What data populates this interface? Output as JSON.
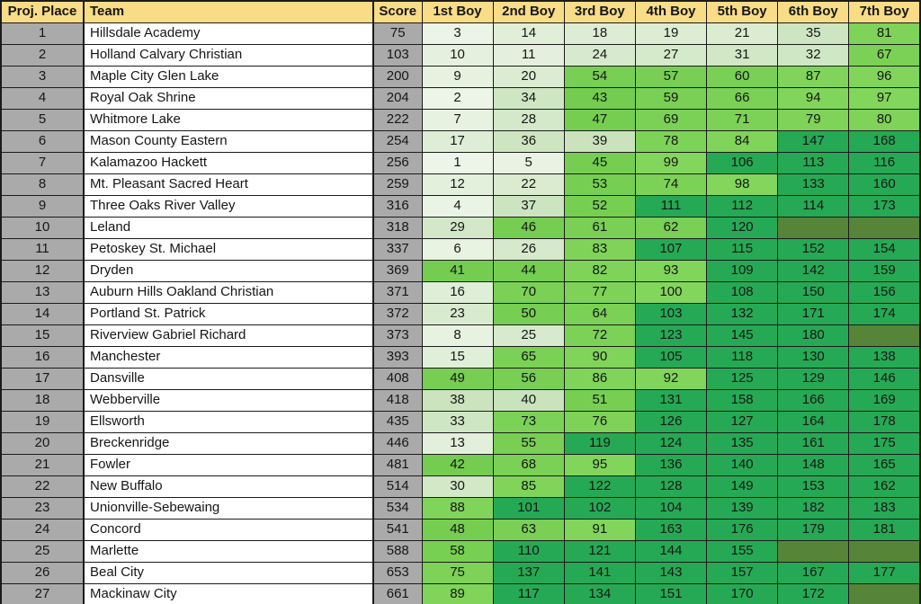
{
  "table": {
    "headers": [
      "Proj. Place",
      "Team",
      "Score",
      "1st Boy",
      "2nd Boy",
      "3rd Boy",
      "4th Boy",
      "5th Boy",
      "6th Boy",
      "7th Boy"
    ],
    "rows": [
      {
        "place": "1",
        "team": "Hillsdale Academy",
        "score": "75",
        "boys": [
          3,
          14,
          18,
          19,
          21,
          35,
          81
        ]
      },
      {
        "place": "2",
        "team": "Holland Calvary Christian",
        "score": "103",
        "boys": [
          10,
          11,
          24,
          27,
          31,
          32,
          67
        ]
      },
      {
        "place": "3",
        "team": "Maple City Glen Lake",
        "score": "200",
        "boys": [
          9,
          20,
          54,
          57,
          60,
          87,
          96
        ]
      },
      {
        "place": "4",
        "team": "Royal Oak Shrine",
        "score": "204",
        "boys": [
          2,
          34,
          43,
          59,
          66,
          94,
          97
        ]
      },
      {
        "place": "5",
        "team": "Whitmore Lake",
        "score": "222",
        "boys": [
          7,
          28,
          47,
          69,
          71,
          79,
          80
        ]
      },
      {
        "place": "6",
        "team": "Mason County Eastern",
        "score": "254",
        "boys": [
          17,
          36,
          39,
          78,
          84,
          147,
          168
        ]
      },
      {
        "place": "7",
        "team": "Kalamazoo Hackett",
        "score": "256",
        "boys": [
          1,
          5,
          45,
          99,
          106,
          113,
          116
        ]
      },
      {
        "place": "8",
        "team": "Mt. Pleasant Sacred Heart",
        "score": "259",
        "boys": [
          12,
          22,
          53,
          74,
          98,
          133,
          160
        ]
      },
      {
        "place": "9",
        "team": "Three Oaks River Valley",
        "score": "316",
        "boys": [
          4,
          37,
          52,
          111,
          112,
          114,
          173
        ]
      },
      {
        "place": "10",
        "team": "Leland",
        "score": "318",
        "boys": [
          29,
          46,
          61,
          62,
          120,
          null,
          null
        ]
      },
      {
        "place": "11",
        "team": "Petoskey St. Michael",
        "score": "337",
        "boys": [
          6,
          26,
          83,
          107,
          115,
          152,
          154
        ]
      },
      {
        "place": "12",
        "team": "Dryden",
        "score": "369",
        "boys": [
          41,
          44,
          82,
          93,
          109,
          142,
          159
        ]
      },
      {
        "place": "13",
        "team": "Auburn Hills Oakland Christian",
        "score": "371",
        "boys": [
          16,
          70,
          77,
          100,
          108,
          150,
          156
        ]
      },
      {
        "place": "14",
        "team": "Portland St. Patrick",
        "score": "372",
        "boys": [
          23,
          50,
          64,
          103,
          132,
          171,
          174
        ]
      },
      {
        "place": "15",
        "team": "Riverview Gabriel Richard",
        "score": "373",
        "boys": [
          8,
          25,
          72,
          123,
          145,
          180,
          null
        ]
      },
      {
        "place": "16",
        "team": "Manchester",
        "score": "393",
        "boys": [
          15,
          65,
          90,
          105,
          118,
          130,
          138
        ]
      },
      {
        "place": "17",
        "team": "Dansville",
        "score": "408",
        "boys": [
          49,
          56,
          86,
          92,
          125,
          129,
          146
        ]
      },
      {
        "place": "18",
        "team": "Webberville",
        "score": "418",
        "boys": [
          38,
          40,
          51,
          131,
          158,
          166,
          169
        ]
      },
      {
        "place": "19",
        "team": "Ellsworth",
        "score": "435",
        "boys": [
          33,
          73,
          76,
          126,
          127,
          164,
          178
        ]
      },
      {
        "place": "20",
        "team": "Breckenridge",
        "score": "446",
        "boys": [
          13,
          55,
          119,
          124,
          135,
          161,
          175
        ]
      },
      {
        "place": "21",
        "team": "Fowler",
        "score": "481",
        "boys": [
          42,
          68,
          95,
          136,
          140,
          148,
          165
        ]
      },
      {
        "place": "22",
        "team": "New Buffalo",
        "score": "514",
        "boys": [
          30,
          85,
          122,
          128,
          149,
          153,
          162
        ]
      },
      {
        "place": "23",
        "team": "Unionville-Sebewaing",
        "score": "534",
        "boys": [
          88,
          101,
          102,
          104,
          139,
          182,
          183
        ]
      },
      {
        "place": "24",
        "team": "Concord",
        "score": "541",
        "boys": [
          48,
          63,
          91,
          163,
          176,
          179,
          181
        ]
      },
      {
        "place": "25",
        "team": "Marlette",
        "score": "588",
        "boys": [
          58,
          110,
          121,
          144,
          155,
          null,
          null
        ]
      },
      {
        "place": "26",
        "team": "Beal City",
        "score": "653",
        "boys": [
          75,
          137,
          141,
          143,
          157,
          167,
          177
        ]
      },
      {
        "place": "27",
        "team": "Mackinaw City",
        "score": "661",
        "boys": [
          89,
          117,
          134,
          151,
          170,
          172,
          null
        ]
      }
    ]
  },
  "colors": {
    "header_bg": "#F8DC86",
    "row_index_bg": "#AAAAAA",
    "team_bg": "#FFFFFF",
    "grid_border": "#1B1B1B",
    "scale_pale_min": "#EDF5E8",
    "scale_light_max": "#C9E3BC",
    "scale_bright_min": "#74CD50",
    "scale_bright_max": "#83D65C",
    "scale_dark": "#26A954",
    "empty_cell": "#568539",
    "text": "#161616"
  },
  "color_scale_rules": {
    "pale_to_light_range": [
      1,
      40
    ],
    "bright_range": [
      41,
      100
    ],
    "dark_threshold": 101
  }
}
